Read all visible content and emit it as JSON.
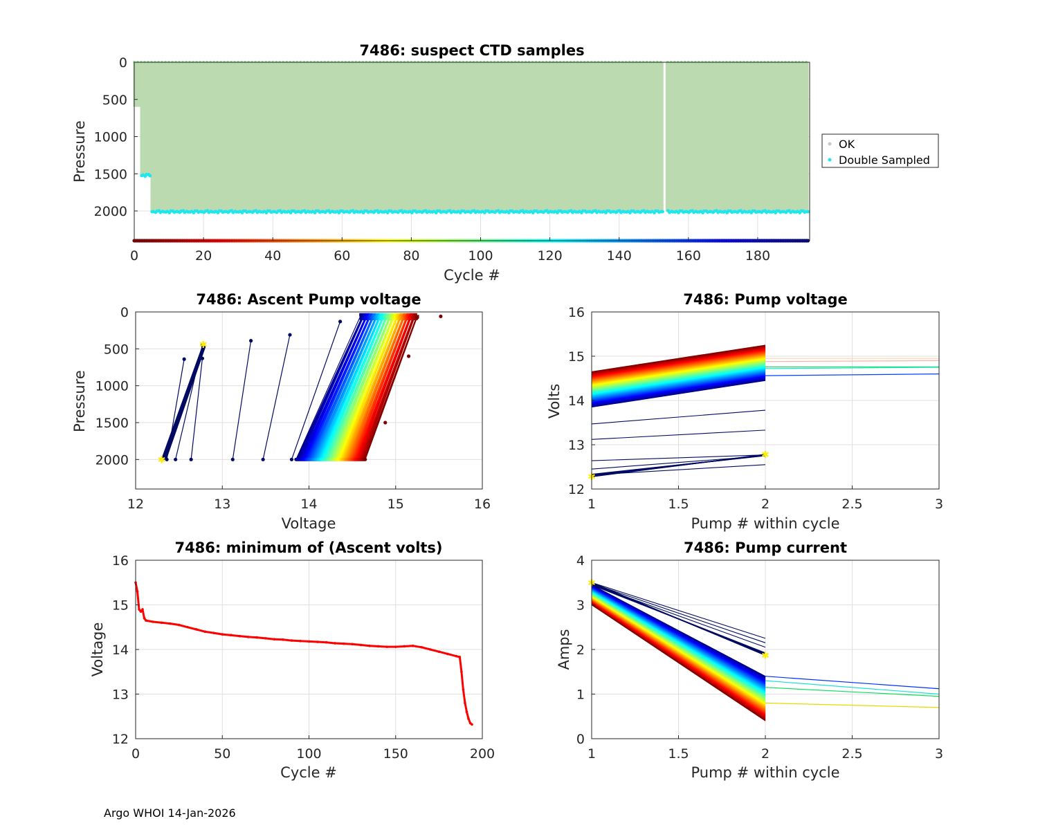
{
  "footer": "Argo WHOI 14-Jan-2026",
  "colors": {
    "ok_fill": "#bcdab0",
    "ok_marker": "#c8c8c8",
    "double_sampled": "#1ee6ee",
    "min_volts_line": "#ff0000",
    "highlight": "#ffee00",
    "early_cycles": "#000a60"
  },
  "chart_data": [
    {
      "id": "ctd",
      "type": "scatter",
      "title": "7486: suspect CTD samples",
      "xlabel": "Cycle #",
      "ylabel": "Pressure",
      "xlim": [
        0,
        195
      ],
      "ylim": [
        2400,
        0
      ],
      "y_reversed": true,
      "xticks": [
        0,
        20,
        40,
        60,
        80,
        100,
        120,
        140,
        160,
        180
      ],
      "yticks": [
        0,
        500,
        1000,
        1500,
        2000
      ],
      "n_cycles": 195,
      "gap_cycle": 153,
      "profile_depths": [
        {
          "from_cycle": 0,
          "to_cycle": 1,
          "max_pressure": 600
        },
        {
          "from_cycle": 2,
          "to_cycle": 4,
          "max_pressure": 1520
        },
        {
          "from_cycle": 5,
          "to_cycle": 194,
          "max_pressure": 2010
        }
      ],
      "cycle_marker_pressure": 2400,
      "legend": [
        "OK",
        "Double Sampled"
      ],
      "legend_position": "outside-right"
    },
    {
      "id": "ascent",
      "type": "line",
      "title": "7486: Ascent Pump voltage",
      "xlabel": "Voltage",
      "ylabel": "Pressure",
      "xlim": [
        12,
        16
      ],
      "ylim": [
        2400,
        0
      ],
      "y_reversed": true,
      "xticks": [
        12,
        13,
        14,
        15,
        16
      ],
      "yticks": [
        0,
        500,
        1000,
        1500,
        2000
      ],
      "early_segments": [
        {
          "x": [
            12.3,
            12.78
          ],
          "y": [
            2000,
            440
          ]
        },
        {
          "x": [
            12.36,
            12.56
          ],
          "y": [
            2000,
            640
          ]
        },
        {
          "x": [
            12.46,
            12.77
          ],
          "y": [
            2000,
            450
          ]
        },
        {
          "x": [
            12.64,
            12.77
          ],
          "y": [
            2000,
            630
          ]
        },
        {
          "x": [
            13.12,
            13.33
          ],
          "y": [
            2000,
            390
          ]
        },
        {
          "x": [
            13.47,
            13.78
          ],
          "y": [
            2000,
            310
          ]
        },
        {
          "x": [
            13.8,
            14.36
          ],
          "y": [
            2000,
            130
          ]
        }
      ],
      "band": {
        "deep_voltage": [
          13.85,
          14.65
        ],
        "shallow_voltage": [
          14.6,
          15.25
        ],
        "deep_pressure": 2000,
        "shallow_pressure": 40
      },
      "highlight_points": [
        {
          "x": 12.3,
          "y": 2000
        },
        {
          "x": 12.78,
          "y": 440
        }
      ],
      "outliers": [
        {
          "x": 15.52,
          "y": 60
        },
        {
          "x": 15.15,
          "y": 600
        },
        {
          "x": 14.88,
          "y": 1500
        }
      ]
    },
    {
      "id": "pumpv",
      "type": "line",
      "title": "7486: Pump voltage",
      "xlabel": "Pump # within cycle",
      "ylabel": "Volts",
      "xlim": [
        1,
        3
      ],
      "ylim": [
        12,
        16
      ],
      "xticks": [
        1,
        1.5,
        2,
        2.5,
        3
      ],
      "yticks": [
        12,
        13,
        14,
        15,
        16
      ],
      "band": {
        "pump1": [
          13.85,
          14.65
        ],
        "pump2": [
          14.45,
          15.25
        ]
      },
      "early_segments": [
        {
          "y": [
            12.28,
            12.78
          ]
        },
        {
          "y": [
            12.32,
            12.55
          ]
        },
        {
          "y": [
            12.45,
            12.75
          ]
        },
        {
          "y": [
            12.64,
            12.77
          ]
        },
        {
          "y": [
            13.12,
            13.33
          ]
        },
        {
          "y": [
            13.47,
            13.78
          ]
        }
      ],
      "third_pump": [
        {
          "y": [
            14.95,
            14.95
          ],
          "color": "#ffd2a0"
        },
        {
          "y": [
            14.88,
            14.9
          ],
          "color": "#ffb0b0"
        },
        {
          "y": [
            14.76,
            14.76
          ],
          "color": "#20e070"
        },
        {
          "y": [
            14.72,
            14.75
          ],
          "color": "#20e0c0"
        },
        {
          "y": [
            14.56,
            14.6
          ],
          "color": "#0040ff"
        }
      ],
      "highlight_points": [
        {
          "x": 1,
          "y": 12.28
        },
        {
          "x": 2,
          "y": 12.78
        }
      ]
    },
    {
      "id": "minvolts",
      "type": "line",
      "title": "7486: minimum of (Ascent volts)",
      "xlabel": "Cycle #",
      "ylabel": "Voltage",
      "xlim": [
        0,
        200
      ],
      "ylim": [
        12,
        16
      ],
      "xticks": [
        0,
        50,
        100,
        150,
        200
      ],
      "yticks": [
        12,
        13,
        14,
        15,
        16
      ],
      "x": [
        0,
        1,
        2,
        3,
        4,
        5,
        6,
        10,
        15,
        20,
        25,
        30,
        35,
        40,
        45,
        50,
        55,
        60,
        65,
        70,
        75,
        80,
        85,
        90,
        95,
        100,
        105,
        110,
        115,
        120,
        125,
        130,
        135,
        140,
        145,
        150,
        155,
        160,
        165,
        170,
        175,
        180,
        185,
        187,
        188,
        189,
        190,
        191,
        192,
        193,
        194
      ],
      "y": [
        15.5,
        15.3,
        14.9,
        14.85,
        14.9,
        14.7,
        14.65,
        14.62,
        14.6,
        14.58,
        14.55,
        14.5,
        14.45,
        14.4,
        14.37,
        14.34,
        14.32,
        14.3,
        14.28,
        14.27,
        14.25,
        14.23,
        14.22,
        14.2,
        14.19,
        14.18,
        14.17,
        14.16,
        14.14,
        14.13,
        14.12,
        14.1,
        14.08,
        14.07,
        14.06,
        14.06,
        14.07,
        14.08,
        14.05,
        14.0,
        13.95,
        13.9,
        13.85,
        13.83,
        13.5,
        13.1,
        12.8,
        12.6,
        12.45,
        12.35,
        12.32
      ]
    },
    {
      "id": "pumpc",
      "type": "line",
      "title": "7486: Pump current",
      "xlabel": "Pump # within cycle",
      "ylabel": "Amps",
      "xlim": [
        1,
        3
      ],
      "ylim": [
        0,
        4
      ],
      "xticks": [
        1,
        1.5,
        2,
        2.5,
        3
      ],
      "yticks": [
        0,
        1,
        2,
        3,
        4
      ],
      "band": {
        "pump1": [
          3.45,
          3.0
        ],
        "pump2": [
          1.4,
          0.4
        ]
      },
      "early_segments": [
        {
          "y": [
            3.5,
            2.25
          ]
        },
        {
          "y": [
            3.48,
            2.15
          ]
        },
        {
          "y": [
            3.46,
            2.05
          ]
        },
        {
          "y": [
            3.5,
            1.87
          ]
        }
      ],
      "third_pump": [
        {
          "y": [
            1.4,
            1.12
          ],
          "color": "#0030ff"
        },
        {
          "y": [
            1.3,
            1.0
          ],
          "color": "#20e0d0"
        },
        {
          "y": [
            1.15,
            0.95
          ],
          "color": "#10e060"
        },
        {
          "y": [
            0.8,
            0.7
          ],
          "color": "#e8d800"
        }
      ],
      "highlight_points": [
        {
          "x": 1,
          "y": 3.5
        },
        {
          "x": 2,
          "y": 1.87
        }
      ]
    }
  ]
}
